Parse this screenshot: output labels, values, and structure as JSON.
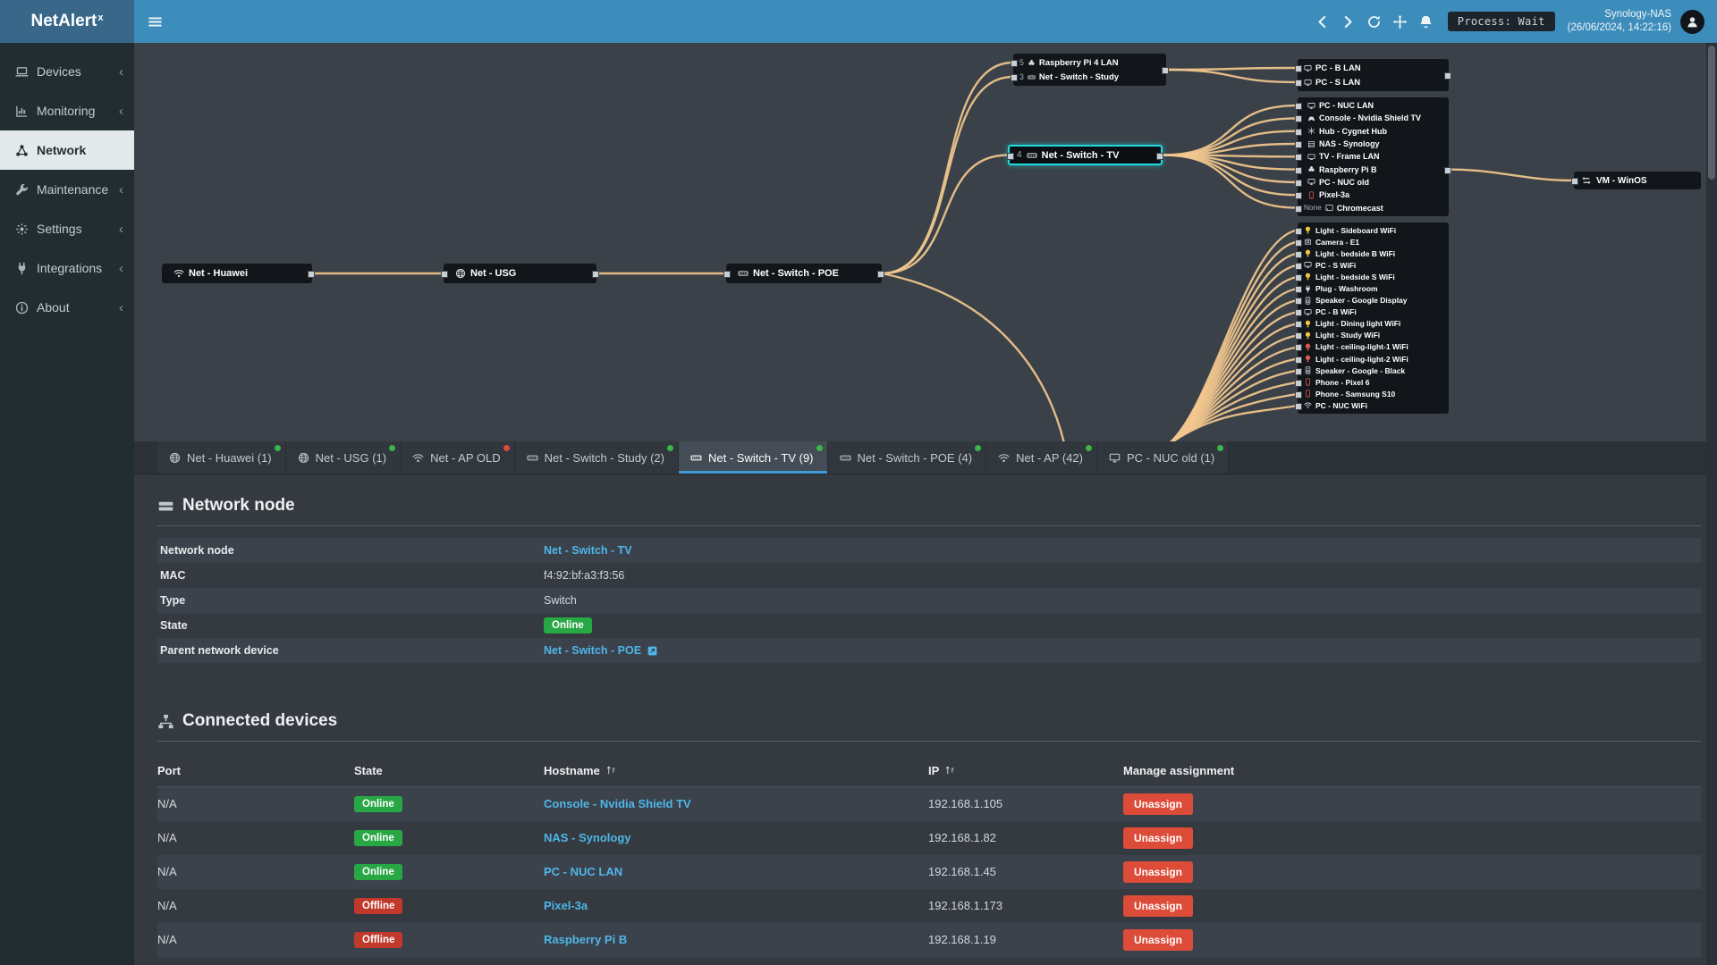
{
  "app": {
    "name": "NetAlert",
    "sup": "x"
  },
  "topbar": {
    "process_status": "Process: Wait",
    "host": "Synology-NAS",
    "timestamp": "(26/06/2024, 14:22:16)"
  },
  "sidebar": {
    "items": [
      {
        "icon": "devices-icon",
        "label": "Devices",
        "chevron": "‹"
      },
      {
        "icon": "monitoring-icon",
        "label": "Monitoring",
        "chevron": "‹"
      },
      {
        "icon": "network-icon",
        "label": "Network",
        "active": true,
        "chevron": ""
      },
      {
        "icon": "maintenance-icon",
        "label": "Maintenance",
        "chevron": "‹"
      },
      {
        "icon": "settings-icon",
        "label": "Settings",
        "chevron": "‹"
      },
      {
        "icon": "integrations-icon",
        "label": "Integrations",
        "chevron": "‹"
      },
      {
        "icon": "about-icon",
        "label": "About",
        "chevron": "‹"
      }
    ]
  },
  "diagram": {
    "root_chain": [
      {
        "icon": "wifi-icon",
        "label": "Net - Huawei"
      },
      {
        "icon": "globe-icon",
        "label": "Net - USG"
      },
      {
        "icon": "switch-icon",
        "label": "Net - Switch - POE"
      }
    ],
    "study_group": [
      {
        "port": "5",
        "icon": "pi-icon",
        "label": "Raspberry Pi 4 LAN"
      },
      {
        "port": "3",
        "icon": "switch-icon",
        "label": "Net - Switch - Study"
      }
    ],
    "tv_node": {
      "port": "4",
      "icon": "switch-icon",
      "label": "Net - Switch - TV"
    },
    "pc_group": [
      {
        "icon": "pc-icon",
        "label": "PC - B LAN"
      },
      {
        "icon": "pc-icon",
        "label": "PC - S LAN"
      }
    ],
    "mid_group": [
      {
        "icon": "pc-icon",
        "label": "PC - NUC LAN"
      },
      {
        "icon": "console-icon",
        "label": "Console - Nvidia Shield TV"
      },
      {
        "icon": "hub-icon",
        "label": "Hub - Cygnet Hub"
      },
      {
        "icon": "nas-icon",
        "label": "NAS - Synology"
      },
      {
        "icon": "tv-icon",
        "label": "TV - Frame LAN"
      },
      {
        "icon": "pi-icon",
        "label": "Raspberry Pi B"
      },
      {
        "icon": "pc-icon",
        "label": "PC - NUC old"
      },
      {
        "icon": "phone-icon",
        "label": "Pixel-3a",
        "color": "#e05a4e"
      },
      {
        "port": "None",
        "icon": "cast-icon",
        "label": "Chromecast"
      }
    ],
    "vm_node": {
      "icon": "vm-icon",
      "label": "VM - WinOS"
    },
    "wifi_group": [
      {
        "icon": "bulb-icon",
        "label": "Light - Sideboard WiFi",
        "color": "#f0c43d"
      },
      {
        "icon": "camera-icon",
        "label": "Camera - E1"
      },
      {
        "icon": "bulb-icon",
        "label": "Light - bedside B WiFi",
        "color": "#f0c43d"
      },
      {
        "icon": "pc-icon",
        "label": "PC - S WiFi"
      },
      {
        "icon": "bulb-icon",
        "label": "Light - bedside S WiFi",
        "color": "#f0c43d"
      },
      {
        "icon": "plug-icon",
        "label": "Plug - Washroom"
      },
      {
        "icon": "speaker-icon",
        "label": "Speaker - Google Display"
      },
      {
        "icon": "pc-icon",
        "label": "PC - B WiFi"
      },
      {
        "icon": "bulb-icon",
        "label": "Light - Dining light WiFi",
        "color": "#f0c43d"
      },
      {
        "icon": "bulb-icon",
        "label": "Light - Study WiFi",
        "color": "#f0c43d"
      },
      {
        "icon": "bulb-icon",
        "label": "Light - ceiling-light-1 WiFi",
        "color": "#e05a4e"
      },
      {
        "icon": "bulb-icon",
        "label": "Light - ceiling-light-2 WiFi",
        "color": "#e05a4e"
      },
      {
        "icon": "speaker-icon",
        "label": "Speaker - Google - Black"
      },
      {
        "icon": "phone-icon",
        "label": "Phone - Pixel 6",
        "color": "#e05a4e"
      },
      {
        "icon": "phone-icon",
        "label": "Phone - Samsung S10",
        "color": "#e05a4e"
      },
      {
        "icon": "wifi-icon",
        "label": "PC - NUC WiFi"
      }
    ]
  },
  "tabs": [
    {
      "icon": "globe-icon",
      "label": "Net - Huawei (1)",
      "dot": "#39b54a"
    },
    {
      "icon": "globe-icon",
      "label": "Net - USG (1)",
      "dot": "#39b54a"
    },
    {
      "icon": "wifi-icon",
      "label": "Net - AP OLD",
      "dot": "#e0493a"
    },
    {
      "icon": "switch-icon",
      "label": "Net - Switch - Study (2)",
      "dot": "#39b54a"
    },
    {
      "icon": "switch-icon",
      "label": "Net - Switch - TV (9)",
      "dot": "#39b54a",
      "active": true
    },
    {
      "icon": "switch-icon",
      "label": "Net - Switch - POE (4)",
      "dot": "#39b54a"
    },
    {
      "icon": "wifi-icon",
      "label": "Net - AP (42)",
      "dot": "#39b54a"
    },
    {
      "icon": "pc-icon",
      "label": "PC - NUC old (1)",
      "dot": "#39b54a"
    }
  ],
  "network_node": {
    "icon": "nic-icon",
    "title": "Network node",
    "rows": [
      {
        "label": "Network node",
        "value": "Net - Switch - TV",
        "kind": "link"
      },
      {
        "label": "MAC",
        "value": "f4:92:bf:a3:f3:56",
        "kind": "text"
      },
      {
        "label": "Type",
        "value": "Switch",
        "kind": "text"
      },
      {
        "label": "State",
        "value": "Online",
        "kind": "badge"
      },
      {
        "label": "Parent network device",
        "value": "Net - Switch - POE",
        "kind": "link",
        "ext": "ext-link-icon"
      }
    ]
  },
  "connected_devices": {
    "icon": "sitemap-icon",
    "title": "Connected devices",
    "columns": {
      "port": "Port",
      "state": "State",
      "hostname": "Hostname",
      "ip": "IP",
      "manage": "Manage assignment"
    },
    "rows": [
      {
        "port": "N/A",
        "state": "Online",
        "hostname": "Console - Nvidia Shield TV",
        "ip": "192.168.1.105",
        "action": "Unassign"
      },
      {
        "port": "N/A",
        "state": "Online",
        "hostname": "NAS - Synology",
        "ip": "192.168.1.82",
        "action": "Unassign"
      },
      {
        "port": "N/A",
        "state": "Online",
        "hostname": "PC - NUC LAN",
        "ip": "192.168.1.45",
        "action": "Unassign"
      },
      {
        "port": "N/A",
        "state": "Offline",
        "hostname": "Pixel-3a",
        "ip": "192.168.1.173",
        "action": "Unassign"
      },
      {
        "port": "N/A",
        "state": "Offline",
        "hostname": "Raspberry Pi B",
        "ip": "192.168.1.19",
        "action": "Unassign"
      }
    ]
  }
}
